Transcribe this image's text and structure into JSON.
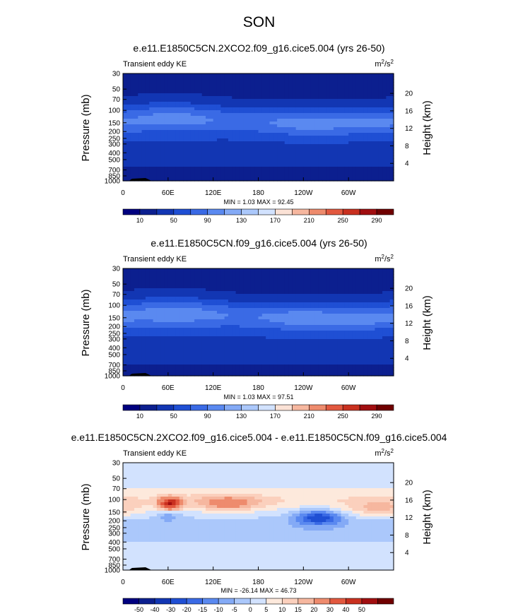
{
  "main_title": "SON",
  "colors": {
    "abs_levels": [
      "#00007f",
      "#0c1f8f",
      "#1236b3",
      "#1f4fd4",
      "#3a6ae5",
      "#5a89f0",
      "#84aaf6",
      "#abc8fb",
      "#d2e2fe",
      "#fbe2d6",
      "#f6b79f",
      "#ee8b6d",
      "#e2583f",
      "#c9301f",
      "#a10e10",
      "#700000"
    ],
    "diff_levels": [
      "#00007f",
      "#0c1f8f",
      "#1236b3",
      "#1f4fd4",
      "#3a6ae5",
      "#5a89f0",
      "#84aaf6",
      "#abc8fb",
      "#d2e2fe",
      "#fde9dc",
      "#fbd0bd",
      "#f6b79f",
      "#ee8b6d",
      "#e2583f",
      "#c9301f",
      "#a10e10",
      "#700000"
    ]
  },
  "chart_data": [
    {
      "type": "heatmap",
      "title": "e.e11.E1850C5CN.2XCO2.f09_g16.cice5.004 (yrs 26-50)",
      "left_string": "Transient eddy KE",
      "right_string_base": "m",
      "right_string_exp1": "2",
      "right_string_mid": "/s",
      "right_string_exp2": "2",
      "ylabel": "Pressure (mb)",
      "ylabel_right": "Height (km)",
      "x_ticks": [
        "0",
        "60E",
        "120E",
        "180",
        "120W",
        "60W"
      ],
      "y_ticks": [
        "30",
        "50",
        "70",
        "100",
        "150",
        "200",
        "250",
        "300",
        "400",
        "500",
        "700",
        "850",
        "1000"
      ],
      "y_right_ticks": [
        "20",
        "16",
        "12",
        "8",
        "4"
      ],
      "stats": "MIN =   1.03  MAX =  92.45",
      "colorbar_labels": [
        "10",
        "50",
        "90",
        "130",
        "170",
        "210",
        "250",
        "290"
      ],
      "ylim": [
        1000,
        30
      ],
      "xlim": [
        0,
        360
      ]
    },
    {
      "type": "heatmap",
      "title": "e.e11.E1850C5CN.f09_g16.cice5.004 (yrs 26-50)",
      "left_string": "Transient eddy KE",
      "right_string_base": "m",
      "right_string_exp1": "2",
      "right_string_mid": "/s",
      "right_string_exp2": "2",
      "ylabel": "Pressure (mb)",
      "ylabel_right": "Height (km)",
      "x_ticks": [
        "0",
        "60E",
        "120E",
        "180",
        "120W",
        "60W"
      ],
      "y_ticks": [
        "30",
        "50",
        "70",
        "100",
        "150",
        "200",
        "250",
        "300",
        "400",
        "500",
        "700",
        "850",
        "1000"
      ],
      "y_right_ticks": [
        "20",
        "16",
        "12",
        "8",
        "4"
      ],
      "stats": "MIN =   1.03  MAX =  97.51",
      "colorbar_labels": [
        "10",
        "50",
        "90",
        "130",
        "170",
        "210",
        "250",
        "290"
      ],
      "ylim": [
        1000,
        30
      ],
      "xlim": [
        0,
        360
      ]
    },
    {
      "type": "heatmap",
      "title": "e.e11.E1850C5CN.2XCO2.f09_g16.cice5.004 - e.e11.E1850C5CN.f09_g16.cice5.004",
      "left_string": "Transient eddy KE",
      "right_string_base": "m",
      "right_string_exp1": "2",
      "right_string_mid": "/s",
      "right_string_exp2": "2",
      "ylabel": "Pressure (mb)",
      "ylabel_right": "Height (km)",
      "x_ticks": [
        "0",
        "60E",
        "120E",
        "180",
        "120W",
        "60W"
      ],
      "y_ticks": [
        "30",
        "50",
        "70",
        "100",
        "150",
        "200",
        "250",
        "300",
        "400",
        "500",
        "700",
        "850",
        "1000"
      ],
      "y_right_ticks": [
        "20",
        "16",
        "12",
        "8",
        "4"
      ],
      "stats": "MIN = -26.14  MAX =  46.73",
      "colorbar_labels": [
        "-50",
        "-40",
        "-30",
        "-20",
        "-15",
        "-10",
        "-5",
        "0",
        "5",
        "10",
        "15",
        "20",
        "30",
        "40",
        "50"
      ],
      "ylim": [
        1000,
        30
      ],
      "xlim": [
        0,
        360
      ]
    }
  ]
}
